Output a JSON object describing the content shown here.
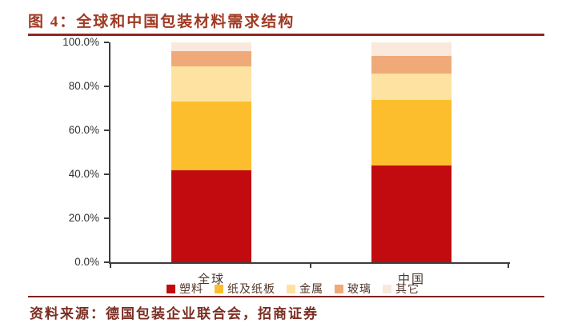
{
  "page": {
    "title": "图 4：全球和中国包装材料需求结构",
    "source": "资料来源：德国包装企业联合会，招商证券",
    "title_color": "#a03a24",
    "rule_color": "#8e2826"
  },
  "chart_data": {
    "type": "bar",
    "stacked": true,
    "title": "全球和中国包装材料需求结构",
    "categories": [
      "全球",
      "中国"
    ],
    "series": [
      {
        "name": "塑料",
        "color": "#c20b0e",
        "values": [
          42,
          44
        ]
      },
      {
        "name": "纸及纸板",
        "color": "#fcbe2d",
        "values": [
          31,
          30
        ]
      },
      {
        "name": "金属",
        "color": "#fde2a2",
        "values": [
          16,
          12
        ]
      },
      {
        "name": "玻璃",
        "color": "#f0aa79",
        "values": [
          7,
          8
        ]
      },
      {
        "name": "其它",
        "color": "#f9e8dc",
        "values": [
          4,
          6
        ]
      }
    ],
    "xlabel": "",
    "ylabel": "",
    "ylim": [
      0,
      100
    ],
    "ytick_labels": [
      "100.0%",
      "80.0%",
      "60.0%",
      "40.0%",
      "20.0%",
      "0.0%"
    ],
    "grid": false,
    "legend_position": "bottom"
  }
}
